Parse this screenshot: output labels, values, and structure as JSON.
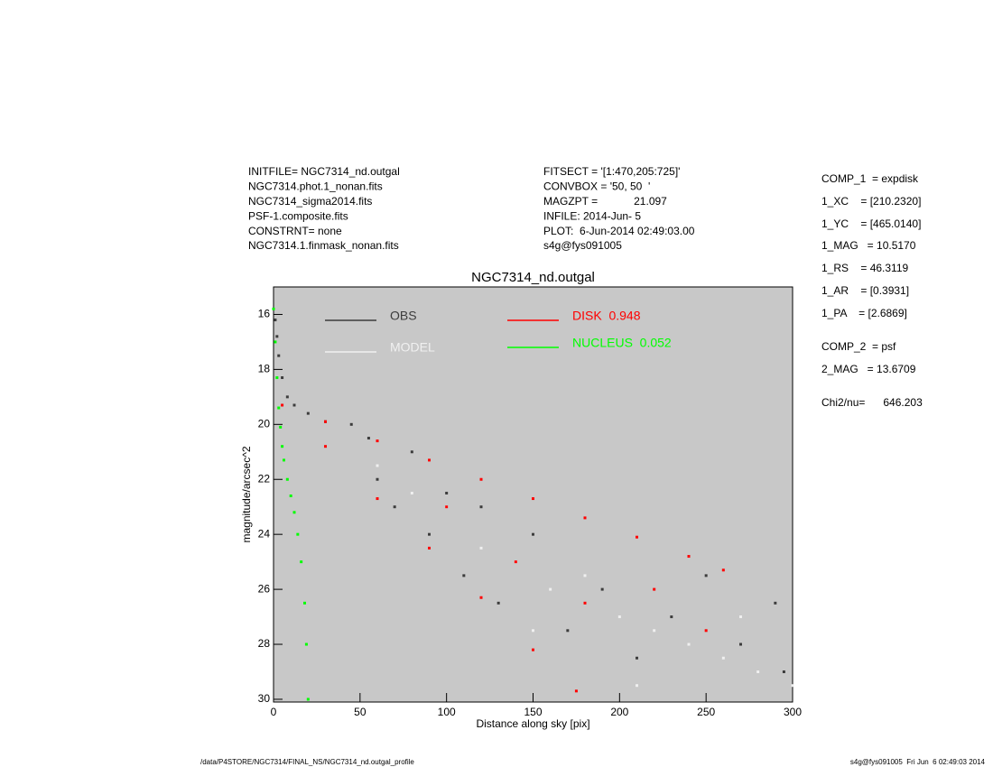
{
  "header": {
    "left": [
      "INITFILE= NGC7314_nd.outgal",
      "NGC7314.phot.1_nonan.fits",
      "NGC7314_sigma2014.fits",
      "PSF-1.composite.fits",
      "CONSTRNT= none",
      "NGC7314.1.finmask_nonan.fits"
    ],
    "middle": [
      "FITSECT = '[1:470,205:725]'",
      "CONVBOX = '50, 50  '",
      "MAGZPT =            21.097",
      "INFILE: 2014-Jun- 5",
      "PLOT:  6-Jun-2014 02:49:03.00",
      "s4g@fys091005"
    ]
  },
  "parameters": [
    "COMP_1  = expdisk",
    "1_XC    = [210.2320]",
    "1_YC    = [465.0140]",
    "1_MAG   = 10.5170",
    "1_RS    = 46.3119",
    "1_AR    = [0.3931]",
    "1_PA    = [2.6869]",
    "COMP_2  = psf",
    "2_MAG   = 13.6709",
    "Chi2/nu=      646.203"
  ],
  "footer": {
    "left": "/data/P4STORE/NGC7314/FINAL_NS/NGC7314_nd.outgal_profile",
    "right": "s4g@fys091005  Fri Jun  6 02:49:03 2014"
  },
  "chart_data": {
    "type": "scatter",
    "title": "NGC7314_nd.outgal",
    "x_label": "Distance along sky [pix]",
    "y_label": "magnitude/arcsec^2",
    "xlim": [
      0,
      300
    ],
    "xticks": [
      0,
      50,
      100,
      150,
      200,
      250,
      300
    ],
    "ylim": [
      30.1,
      15
    ],
    "yticks": [
      16,
      18,
      20,
      22,
      24,
      26,
      28,
      30
    ],
    "background": "#c8c8c8",
    "series": [
      {
        "name": "OBS",
        "color": "#3c3c3c",
        "x": [
          1,
          2,
          3,
          5,
          8,
          12,
          20,
          30,
          45,
          55,
          60,
          70,
          80,
          90,
          100,
          110,
          120,
          130,
          150,
          170,
          190,
          210,
          230,
          250,
          270,
          290,
          295
        ],
        "values": [
          16.2,
          16.8,
          17.5,
          18.3,
          19.0,
          19.3,
          19.6,
          19.9,
          20.0,
          20.5,
          22.0,
          23.0,
          21.0,
          24.0,
          22.5,
          25.5,
          23.0,
          26.5,
          24.0,
          27.5,
          26.0,
          28.5,
          27.0,
          25.5,
          28.0,
          26.5,
          29.0
        ]
      },
      {
        "name": "MODEL",
        "color": "#f0f0f0",
        "x": [
          60,
          80,
          100,
          120,
          140,
          160,
          180,
          200,
          220,
          240,
          260,
          280,
          300,
          150,
          210,
          270
        ],
        "values": [
          21.5,
          22.5,
          23.0,
          24.5,
          25.0,
          26.0,
          25.5,
          27.0,
          27.5,
          28.0,
          28.5,
          29.0,
          29.5,
          27.5,
          29.5,
          27.0
        ]
      },
      {
        "name": "DISK  0.948",
        "color": "#ff0000",
        "x": [
          5,
          30,
          60,
          90,
          120,
          150,
          180,
          210,
          240,
          260,
          30,
          60,
          90,
          120,
          150,
          175,
          100,
          140,
          180,
          220,
          250
        ],
        "values": [
          19.3,
          19.9,
          20.6,
          21.3,
          22.0,
          22.7,
          23.4,
          24.1,
          24.8,
          25.3,
          20.8,
          22.7,
          24.5,
          26.3,
          28.2,
          29.7,
          23.0,
          25.0,
          26.5,
          26.0,
          27.5
        ]
      },
      {
        "name": "NUCLEUS  0.052",
        "color": "#00ff00",
        "x": [
          0,
          1,
          2,
          3,
          4,
          5,
          6,
          8,
          10,
          12,
          14,
          16,
          18,
          19,
          20
        ],
        "values": [
          15.8,
          17.0,
          18.3,
          19.4,
          20.1,
          20.8,
          21.3,
          22.0,
          22.6,
          23.2,
          24.0,
          25.0,
          26.5,
          28.0,
          30.0
        ]
      }
    ]
  }
}
